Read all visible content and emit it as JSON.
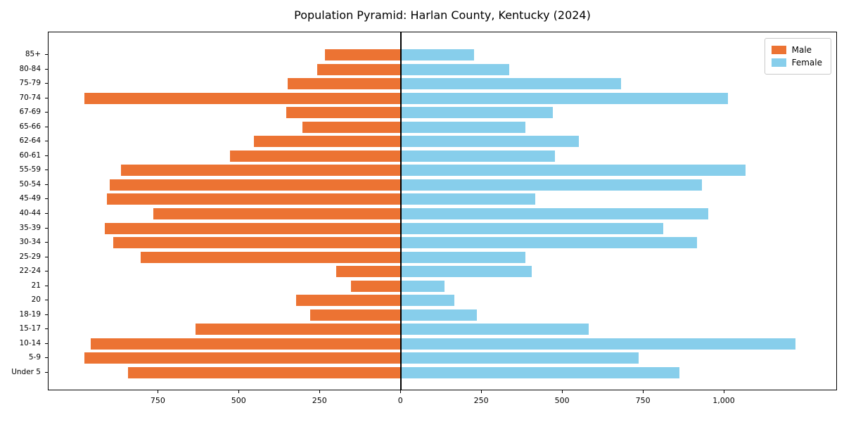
{
  "chart_data": {
    "type": "bar",
    "variant": "population-pyramid",
    "orientation": "horizontal",
    "title": "Population Pyramid: Harlan County, Kentucky (2024)",
    "grid": false,
    "legend_position": "upper right",
    "categories_top_to_bottom": [
      "85+",
      "80-84",
      "75-79",
      "70-74",
      "67-69",
      "65-66",
      "62-64",
      "60-61",
      "55-59",
      "50-54",
      "45-49",
      "40-44",
      "35-39",
      "30-34",
      "25-29",
      "22-24",
      "21",
      "20",
      "18-19",
      "15-17",
      "10-14",
      "5-9",
      "Under 5"
    ],
    "series": [
      {
        "name": "Male",
        "side": "left",
        "color": "#ec7333",
        "values": [
          235,
          260,
          350,
          980,
          355,
          305,
          455,
          530,
          865,
          900,
          910,
          765,
          915,
          890,
          805,
          200,
          155,
          325,
          280,
          635,
          960,
          980,
          845
        ]
      },
      {
        "name": "Female",
        "side": "right",
        "color": "#87ceeb",
        "values": [
          225,
          335,
          680,
          1010,
          470,
          385,
          550,
          475,
          1065,
          930,
          415,
          950,
          810,
          915,
          385,
          405,
          135,
          165,
          235,
          580,
          1220,
          735,
          860
        ]
      }
    ],
    "xlim": [
      -1090,
      1350
    ],
    "xticks": [
      {
        "value": -750,
        "label": "750"
      },
      {
        "value": -500,
        "label": "500"
      },
      {
        "value": -250,
        "label": "250"
      },
      {
        "value": 0,
        "label": "0"
      },
      {
        "value": 250,
        "label": "250"
      },
      {
        "value": 500,
        "label": "500"
      },
      {
        "value": 750,
        "label": "750"
      },
      {
        "value": 1000,
        "label": "1,000"
      }
    ],
    "axis_color": "#000000",
    "zero_line_color": "#000000"
  }
}
